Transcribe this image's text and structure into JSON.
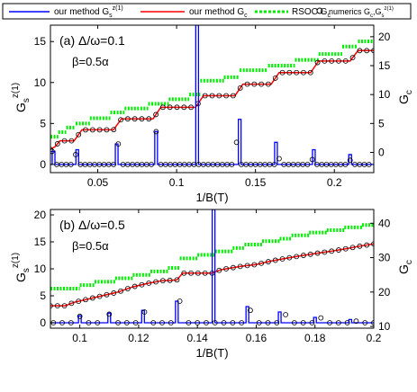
{
  "legend": {
    "items": [
      {
        "label": "our method G",
        "sub": "s",
        "sup": "z(1)",
        "color": "#0000ff",
        "style": "solid"
      },
      {
        "label": "our method G",
        "sub": "c",
        "sup": "",
        "color": "#ff0000",
        "style": "solid"
      },
      {
        "label": "RSOC G",
        "sub": "c",
        "sup": "",
        "color": "#00dd00",
        "style": "dotted"
      },
      {
        "label": "numerics G",
        "sub": "c",
        "sup": "",
        "label2": ",G",
        "sub2": "s",
        "sup2": "z(1)",
        "color": "#000000",
        "style": "circle"
      }
    ]
  },
  "colors": {
    "blue": "#0000ff",
    "red": "#ff0000",
    "green": "#00ee00",
    "markers": "#000000"
  },
  "chart_data": [
    {
      "type": "line",
      "panel_label": "(a) Δ/ω=0.1",
      "beta_label": "β=0.5α",
      "xlabel": "1/B(T)",
      "ylabel_left": {
        "main": "G",
        "sub": "s",
        "sup": "z(1)"
      },
      "ylabel_right": {
        "main": "G",
        "sub": "c"
      },
      "xlim": [
        0.02,
        0.225
      ],
      "ylim_left": [
        -1,
        17
      ],
      "ylim_right": [
        -3.5,
        22
      ],
      "xticks": [
        0.05,
        0.1,
        0.15,
        0.2
      ],
      "xtick_labels": [
        "0.05",
        "0.1",
        "0.15",
        "0.2"
      ],
      "yticks_left": [
        0,
        5,
        10,
        15
      ],
      "ytick_labels_left": [
        "0",
        "5",
        "10",
        "15"
      ],
      "yticks_right": [
        0,
        5,
        10,
        15,
        20
      ],
      "ytick_labels_right": [
        "0",
        "5",
        "10",
        "15",
        "20"
      ],
      "series": [
        {
          "axis": "right",
          "style": "green-dotted",
          "x": [
            0.02,
            0.025,
            0.03,
            0.036,
            0.045,
            0.058,
            0.067,
            0.082,
            0.095,
            0.108,
            0.115,
            0.13,
            0.14,
            0.158,
            0.175,
            0.19,
            0.205,
            0.215,
            0.225
          ],
          "y": [
            2.7,
            3.5,
            4.3,
            5.0,
            5.9,
            6.9,
            7.6,
            8.4,
            9.2,
            10.0,
            12.4,
            13.0,
            14.2,
            15.0,
            16.0,
            17.0,
            18.3,
            19.2,
            20.1
          ]
        },
        {
          "axis": "right",
          "style": "red-steps",
          "x": [
            0.02,
            0.023,
            0.026,
            0.035,
            0.04,
            0.06,
            0.065,
            0.085,
            0.09,
            0.112,
            0.117,
            0.137,
            0.142,
            0.16,
            0.165,
            0.185,
            0.19,
            0.21,
            0.215,
            0.225
          ],
          "y": [
            0.5,
            1.0,
            2.0,
            2.0,
            3.9,
            3.9,
            5.8,
            5.8,
            7.8,
            7.8,
            9.8,
            9.8,
            11.8,
            11.8,
            13.8,
            13.8,
            15.8,
            15.8,
            17.6,
            17.6
          ]
        },
        {
          "axis": "left",
          "style": "blue-spikes",
          "x": [
            0.022,
            0.037,
            0.062,
            0.087,
            0.113,
            0.14,
            0.163,
            0.187,
            0.21
          ],
          "y": [
            1.6,
            1.8,
            2.5,
            4.0,
            17.0,
            5.5,
            2.7,
            1.8,
            1.2
          ]
        },
        {
          "axis": "left",
          "style": "circles",
          "x": [
            0.021,
            0.024,
            0.027,
            0.03,
            0.033,
            0.036,
            0.039,
            0.042,
            0.045,
            0.048,
            0.051,
            0.054,
            0.057,
            0.06,
            0.063,
            0.066,
            0.069,
            0.072,
            0.075,
            0.078,
            0.081,
            0.084,
            0.087,
            0.09,
            0.093,
            0.096,
            0.099,
            0.102,
            0.105,
            0.108,
            0.111,
            0.114,
            0.117,
            0.12,
            0.123,
            0.126,
            0.129,
            0.132,
            0.135,
            0.138,
            0.141,
            0.144,
            0.147,
            0.15,
            0.153,
            0.156,
            0.159,
            0.162,
            0.165,
            0.168,
            0.171,
            0.174,
            0.177,
            0.18,
            0.183,
            0.186,
            0.189,
            0.192,
            0.195,
            0.198,
            0.201,
            0.204,
            0.207,
            0.21,
            0.213,
            0.216,
            0.219,
            0.222
          ],
          "y": [
            1.6,
            0,
            0,
            0,
            0,
            1.2,
            0,
            0,
            0,
            0,
            0,
            0,
            0,
            0,
            2.5,
            0,
            0,
            0,
            0,
            0,
            0,
            0,
            4.0,
            0,
            0,
            0,
            0,
            0,
            0,
            0,
            0,
            0,
            0,
            0,
            0,
            0,
            0,
            0,
            0,
            2.7,
            0,
            0,
            0,
            0,
            0,
            0,
            0,
            0,
            0.7,
            0,
            0,
            0,
            0,
            0,
            0,
            0.6,
            0,
            0,
            0,
            0,
            0,
            0,
            0,
            0.5,
            0,
            0,
            0,
            0
          ]
        }
      ]
    },
    {
      "type": "line",
      "panel_label": "(b) Δ/ω=0.5",
      "beta_label": "β=0.5α",
      "xlabel": "1/B(T)",
      "ylabel_left": {
        "main": "G",
        "sub": "s",
        "sup": "z(1)"
      },
      "ylabel_right": {
        "main": "G",
        "sub": "c"
      },
      "xlim": [
        0.09,
        0.2
      ],
      "ylim_left": [
        -1,
        21
      ],
      "ylim_right": [
        9.5,
        44
      ],
      "xticks": [
        0.1,
        0.12,
        0.14,
        0.16,
        0.18,
        0.2
      ],
      "xtick_labels": [
        "0.1",
        "0.12",
        "0.14",
        "0.16",
        "0.18",
        "0.2"
      ],
      "yticks_left": [
        0,
        5,
        10,
        15,
        20
      ],
      "ytick_labels_left": [
        "0",
        "5",
        "10",
        "15",
        "20"
      ],
      "yticks_right": [
        10,
        20,
        30,
        40
      ],
      "ytick_labels_right": [
        "10",
        "20",
        "30",
        "40"
      ],
      "series": [
        {
          "axis": "right",
          "style": "green-dotted",
          "x": [
            0.09,
            0.1,
            0.105,
            0.112,
            0.118,
            0.124,
            0.13,
            0.134,
            0.14,
            0.146,
            0.152,
            0.156,
            0.162,
            0.168,
            0.172,
            0.178,
            0.184,
            0.19,
            0.196,
            0.2
          ],
          "y": [
            21.0,
            22.0,
            23.0,
            24.0,
            25.0,
            26.0,
            27.0,
            29.8,
            30.8,
            31.8,
            32.8,
            33.8,
            34.8,
            35.5,
            36.5,
            37.3,
            38.0,
            38.8,
            39.5,
            40.0
          ]
        },
        {
          "axis": "right",
          "style": "red-steps",
          "x": [
            0.09,
            0.095,
            0.098,
            0.103,
            0.108,
            0.113,
            0.118,
            0.123,
            0.128,
            0.133,
            0.135,
            0.145,
            0.148,
            0.155,
            0.16,
            0.165,
            0.17,
            0.175,
            0.18,
            0.185,
            0.19,
            0.195,
            0.2
          ],
          "y": [
            16.0,
            16.0,
            17.0,
            18.0,
            19.0,
            20.0,
            21.5,
            22.5,
            23.3,
            23.5,
            25.5,
            25.5,
            26.5,
            27.5,
            28.0,
            29.0,
            29.8,
            30.5,
            31.2,
            31.8,
            32.5,
            33.3,
            34.0
          ]
        },
        {
          "axis": "left",
          "style": "blue-spikes",
          "x": [
            0.1,
            0.11,
            0.1215,
            0.133,
            0.1455,
            0.157,
            0.168,
            0.18,
            0.192
          ],
          "y": [
            1.3,
            1.8,
            2.3,
            4.0,
            21.0,
            3.0,
            2.0,
            1.0,
            0.6
          ]
        },
        {
          "axis": "left",
          "style": "circles",
          "x": [
            0.091,
            0.094,
            0.097,
            0.1,
            0.103,
            0.106,
            0.11,
            0.113,
            0.116,
            0.119,
            0.122,
            0.125,
            0.128,
            0.131,
            0.134,
            0.137,
            0.14,
            0.143,
            0.146,
            0.149,
            0.152,
            0.155,
            0.158,
            0.161,
            0.164,
            0.167,
            0.17,
            0.173,
            0.176,
            0.179,
            0.182,
            0.185,
            0.188,
            0.191,
            0.194,
            0.197,
            0.2
          ],
          "y": [
            0,
            0,
            0,
            1.2,
            0,
            0,
            1.6,
            0,
            0,
            0,
            2.0,
            0,
            0,
            0,
            4.0,
            0,
            0,
            0,
            0,
            0,
            0,
            0,
            2.3,
            0,
            0,
            0,
            1.5,
            0,
            0,
            0,
            0.9,
            0,
            0,
            0,
            0.3,
            0,
            0
          ]
        }
      ]
    }
  ]
}
